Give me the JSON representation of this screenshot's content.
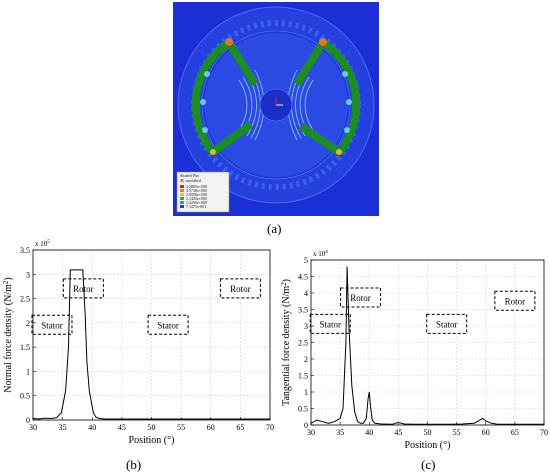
{
  "panels": {
    "a": "(a)",
    "b": "(b)",
    "c": "(c)"
  },
  "fem": {
    "legend_lines": [
      "Shaded Plot",
      "|B| smoothed",
      "4.2885e+000",
      "3.5738e+000",
      "2.8590e+000",
      "2.1443e+000",
      "1.4295e+000",
      "7.1475e-001",
      "0.0000e+000"
    ],
    "colors": {
      "background": "#1c2fd6",
      "steel": "#2f57e8",
      "magnet": "#1c8c24",
      "field_light": "#9fd6f0",
      "hot": "#e0752b"
    }
  },
  "chart_data": [
    {
      "type": "line",
      "xlabel": "Position (°)",
      "ylabel": "Normal force density (N/m²)",
      "ylabel_main": "Normal force density (N/m",
      "ylabel_sup": "2",
      "ylabel_close": ")",
      "exponent": "x 10",
      "exponent_sup": "5",
      "xlim": [
        30,
        70
      ],
      "ylim": [
        0,
        3.5
      ],
      "xticks": [
        "30",
        "35",
        "40",
        "45",
        "50",
        "55",
        "60",
        "65",
        "70"
      ],
      "yticks": [
        "0",
        "0.5",
        "1",
        "1.5",
        "2",
        "2.5",
        "3",
        "3.5"
      ],
      "grid": true,
      "series": [
        {
          "x": [
            30,
            31,
            32,
            33,
            34,
            34.8,
            35.5,
            36,
            36.3,
            36.6,
            37.4,
            38,
            38.4,
            38.8,
            39.1,
            39.5,
            39.8,
            40.2,
            40.6,
            41.2,
            42,
            45,
            50,
            55,
            60,
            65,
            70
          ],
          "y": [
            0.03,
            0.02,
            0.04,
            0.03,
            0.05,
            0.15,
            0.6,
            1.5,
            3.09,
            3.09,
            3.09,
            3.09,
            3.09,
            2.2,
            1.2,
            0.6,
            0.4,
            0.15,
            0.06,
            0.03,
            0.02,
            0.02,
            0.02,
            0.02,
            0.02,
            0.02,
            0.02
          ]
        }
      ],
      "annotations": [
        {
          "text": "Stator",
          "x": 33.2,
          "y": 1.95
        },
        {
          "text": "Rotor",
          "x": 38.5,
          "y": 2.7
        },
        {
          "text": "Stator",
          "x": 52.8,
          "y": 1.95
        },
        {
          "text": "Rotor",
          "x": 65,
          "y": 2.7
        }
      ]
    },
    {
      "type": "line",
      "xlabel": "Position (°)",
      "ylabel": "Tangential force density (N/m²)",
      "ylabel_main": "Tangential force density (N/m",
      "ylabel_sup": "2",
      "ylabel_close": ")",
      "exponent": "x 10",
      "exponent_sup": "4",
      "xlim": [
        30,
        70
      ],
      "ylim": [
        0,
        5
      ],
      "xticks": [
        "30",
        "35",
        "40",
        "45",
        "50",
        "55",
        "60",
        "65",
        "70"
      ],
      "yticks": [
        "0",
        "0.5",
        "1",
        "1.5",
        "2",
        "2.5",
        "3",
        "3.5",
        "4",
        "4.5",
        "5"
      ],
      "grid": true,
      "series": [
        {
          "x": [
            30,
            31,
            32,
            33,
            34,
            35,
            35.5,
            36,
            36.2,
            36.5,
            37,
            37.5,
            38,
            38.5,
            39,
            39.5,
            39.8,
            40,
            40.2,
            40.5,
            41,
            42,
            44,
            45,
            46,
            48,
            50,
            52,
            54,
            56,
            58,
            59,
            59.5,
            60,
            61,
            62,
            65,
            70
          ],
          "y": [
            0.05,
            0.15,
            0.1,
            0.05,
            0.1,
            0.2,
            0.5,
            2.5,
            4.8,
            3.0,
            1.2,
            0.4,
            0.1,
            0.05,
            0.05,
            0.2,
            0.8,
            1.0,
            0.6,
            0.15,
            0.05,
            0.03,
            0.02,
            0.08,
            0.03,
            0.02,
            0.02,
            0.02,
            0.02,
            0.03,
            0.05,
            0.15,
            0.2,
            0.12,
            0.05,
            0.02,
            0.02,
            0.02
          ]
        }
      ],
      "annotations": [
        {
          "text": "Stator",
          "x": 33.3,
          "y": 3.05
        },
        {
          "text": "Rotor",
          "x": 38.5,
          "y": 3.85
        },
        {
          "text": "Stator",
          "x": 53.3,
          "y": 3.05
        },
        {
          "text": "Rotor",
          "x": 65,
          "y": 3.75
        }
      ]
    }
  ]
}
